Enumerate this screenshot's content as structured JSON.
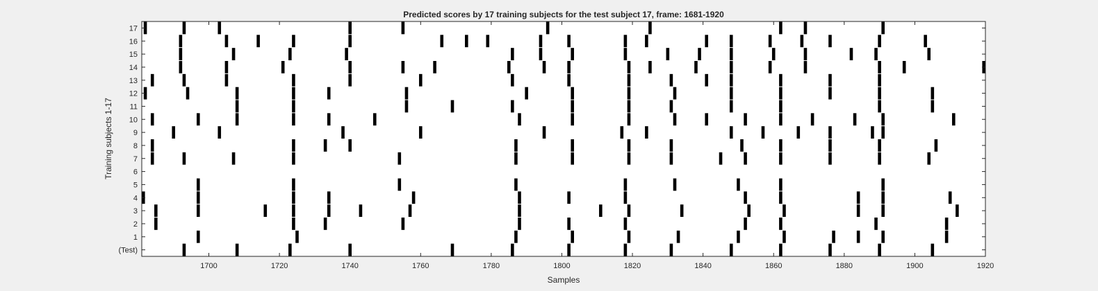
{
  "chart_data": {
    "type": "raster",
    "title": "Predicted scores by 17 training subjects for the test subject 17, frame: 1681-1920",
    "xlabel": "Samples",
    "ylabel": "Training subjects 1-17",
    "xlim": [
      1681,
      1920
    ],
    "xticks": [
      1700,
      1720,
      1740,
      1760,
      1780,
      1800,
      1820,
      1840,
      1860,
      1880,
      1900,
      1920
    ],
    "ytick_labels": [
      "(Test)",
      "1",
      "2",
      "3",
      "4",
      "5",
      "6",
      "7",
      "8",
      "9",
      "10",
      "11",
      "12",
      "13",
      "14",
      "15",
      "16",
      "17"
    ],
    "grid": false,
    "rows": [
      {
        "label": "(Test)",
        "x": [
          1693,
          1708,
          1723,
          1740,
          1769,
          1786,
          1802,
          1818,
          1831,
          1848,
          1862,
          1876,
          1890,
          1905
        ]
      },
      {
        "label": "1",
        "x": [
          1697,
          1725,
          1787,
          1803,
          1819,
          1833,
          1850,
          1863,
          1877,
          1884,
          1891,
          1909
        ]
      },
      {
        "label": "2",
        "x": [
          1685,
          1724,
          1733,
          1755,
          1788,
          1802,
          1818,
          1852,
          1862,
          1889,
          1909
        ]
      },
      {
        "label": "3",
        "x": [
          1685,
          1697,
          1716,
          1724,
          1734,
          1743,
          1757,
          1788,
          1811,
          1819,
          1834,
          1853,
          1863,
          1884,
          1891,
          1912
        ]
      },
      {
        "label": "4",
        "x": [
          1681,
          1697,
          1724,
          1734,
          1758,
          1788,
          1802,
          1818,
          1852,
          1862,
          1884,
          1891,
          1910
        ]
      },
      {
        "label": "5",
        "x": [
          1697,
          1724,
          1754,
          1787,
          1818,
          1832,
          1850,
          1862,
          1891
        ]
      },
      {
        "label": "6",
        "x": []
      },
      {
        "label": "7",
        "x": [
          1684,
          1693,
          1707,
          1724,
          1754,
          1787,
          1803,
          1819,
          1831,
          1845,
          1852,
          1862,
          1876,
          1890,
          1904
        ]
      },
      {
        "label": "8",
        "x": [
          1684,
          1724,
          1733,
          1740,
          1787,
          1803,
          1819,
          1831,
          1851,
          1862,
          1876,
          1890,
          1906
        ]
      },
      {
        "label": "9",
        "x": [
          1690,
          1703,
          1738,
          1760,
          1795,
          1817,
          1824,
          1848,
          1857,
          1867,
          1876,
          1888,
          1891
        ]
      },
      {
        "label": "10",
        "x": [
          1684,
          1697,
          1708,
          1724,
          1734,
          1747,
          1788,
          1803,
          1819,
          1832,
          1841,
          1852,
          1862,
          1871,
          1883,
          1891,
          1911
        ]
      },
      {
        "label": "11",
        "x": [
          1708,
          1724,
          1756,
          1769,
          1786,
          1803,
          1819,
          1831,
          1848,
          1862,
          1890,
          1905
        ]
      },
      {
        "label": "12",
        "x": [
          1682,
          1694,
          1708,
          1724,
          1734,
          1756,
          1790,
          1803,
          1819,
          1832,
          1848,
          1862,
          1876,
          1890,
          1905
        ]
      },
      {
        "label": "13",
        "x": [
          1684,
          1693,
          1705,
          1724,
          1740,
          1760,
          1786,
          1802,
          1819,
          1831,
          1841,
          1848,
          1862,
          1876,
          1890
        ]
      },
      {
        "label": "14",
        "x": [
          1692,
          1705,
          1721,
          1740,
          1755,
          1764,
          1785,
          1795,
          1802,
          1819,
          1825,
          1838,
          1848,
          1859,
          1869,
          1890,
          1897,
          1920
        ]
      },
      {
        "label": "15",
        "x": [
          1692,
          1707,
          1723,
          1739,
          1786,
          1794,
          1803,
          1818,
          1830,
          1839,
          1848,
          1860,
          1869,
          1882,
          1889,
          1904
        ]
      },
      {
        "label": "16",
        "x": [
          1692,
          1705,
          1714,
          1724,
          1740,
          1766,
          1773,
          1779,
          1794,
          1802,
          1818,
          1824,
          1841,
          1848,
          1859,
          1868,
          1876,
          1890,
          1903
        ]
      },
      {
        "label": "17",
        "x": [
          1682,
          1693,
          1703,
          1740,
          1755,
          1796,
          1825,
          1862,
          1869,
          1891
        ]
      }
    ]
  }
}
